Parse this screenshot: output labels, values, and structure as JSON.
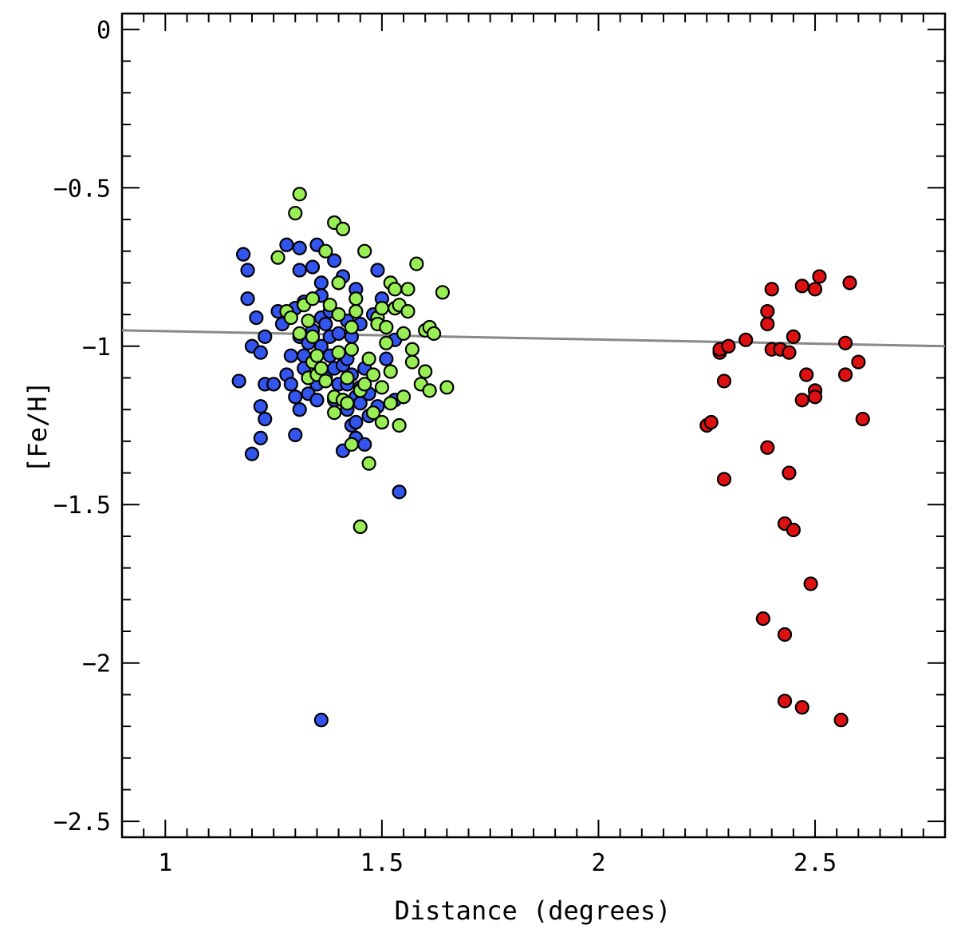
{
  "chart_data": {
    "type": "scatter",
    "title": "",
    "xlabel": "Distance (degrees)",
    "ylabel": "[Fe/H]",
    "xlim": [
      0.9,
      2.8
    ],
    "ylim": [
      -2.55,
      0.05
    ],
    "x_ticks": [
      1,
      1.5,
      2,
      2.5
    ],
    "x_tick_labels": [
      "1",
      "1.5",
      "2",
      "2.5"
    ],
    "y_ticks": [
      0,
      -0.5,
      -1,
      -1.5,
      -2,
      -2.5
    ],
    "y_tick_labels": [
      "0",
      "−0.5",
      "−1",
      "−1.5",
      "−2",
      "−2.5"
    ],
    "grid": false,
    "colors": {
      "blue": "#3355ee",
      "green": "#99ee55",
      "red": "#dd1111",
      "line": "#888888",
      "edge": "#000000"
    },
    "fit_line": {
      "x": [
        0.9,
        2.8
      ],
      "y": [
        -0.95,
        -1.0
      ]
    },
    "series": [
      {
        "name": "blue",
        "color": "#3355ee",
        "points": [
          [
            1.17,
            -1.11
          ],
          [
            1.18,
            -0.71
          ],
          [
            1.19,
            -0.76
          ],
          [
            1.19,
            -0.85
          ],
          [
            1.2,
            -1.34
          ],
          [
            1.2,
            -1.0
          ],
          [
            1.21,
            -0.91
          ],
          [
            1.22,
            -1.02
          ],
          [
            1.22,
            -1.29
          ],
          [
            1.22,
            -1.19
          ],
          [
            1.23,
            -1.12
          ],
          [
            1.23,
            -1.23
          ],
          [
            1.23,
            -0.97
          ],
          [
            1.25,
            -1.12
          ],
          [
            1.26,
            -0.89
          ],
          [
            1.27,
            -0.93
          ],
          [
            1.28,
            -1.09
          ],
          [
            1.28,
            -0.68
          ],
          [
            1.29,
            -1.03
          ],
          [
            1.29,
            -1.12
          ],
          [
            1.3,
            -1.16
          ],
          [
            1.3,
            -1.28
          ],
          [
            1.3,
            -0.88
          ],
          [
            1.31,
            -1.2
          ],
          [
            1.31,
            -0.69
          ],
          [
            1.31,
            -0.76
          ],
          [
            1.31,
            -0.97
          ],
          [
            1.32,
            -1.07
          ],
          [
            1.32,
            -1.03
          ],
          [
            1.32,
            -0.86
          ],
          [
            1.33,
            -1.1
          ],
          [
            1.33,
            -0.99
          ],
          [
            1.33,
            -1.15
          ],
          [
            1.34,
            -0.75
          ],
          [
            1.34,
            -0.95
          ],
          [
            1.34,
            -1.05
          ],
          [
            1.35,
            -1.12
          ],
          [
            1.35,
            -1.17
          ],
          [
            1.35,
            -0.68
          ],
          [
            1.36,
            -0.84
          ],
          [
            1.36,
            -0.8
          ],
          [
            1.36,
            -0.91
          ],
          [
            1.36,
            -1.0
          ],
          [
            1.37,
            -0.93
          ],
          [
            1.37,
            -1.1
          ],
          [
            1.38,
            -0.97
          ],
          [
            1.38,
            -1.03
          ],
          [
            1.38,
            -0.89
          ],
          [
            1.39,
            -0.73
          ],
          [
            1.39,
            -1.07
          ],
          [
            1.4,
            -0.96
          ],
          [
            1.4,
            -1.12
          ],
          [
            1.41,
            -0.78
          ],
          [
            1.41,
            -1.06
          ],
          [
            1.41,
            -1.33
          ],
          [
            1.42,
            -0.92
          ],
          [
            1.42,
            -1.04
          ],
          [
            1.42,
            -1.12
          ],
          [
            1.42,
            -1.2
          ],
          [
            1.43,
            -0.97
          ],
          [
            1.43,
            -1.25
          ],
          [
            1.43,
            -1.09
          ],
          [
            1.44,
            -0.82
          ],
          [
            1.44,
            -1.16
          ],
          [
            1.44,
            -1.29
          ],
          [
            1.44,
            -1.24
          ],
          [
            1.45,
            -1.13
          ],
          [
            1.45,
            -1.18
          ],
          [
            1.46,
            -1.31
          ],
          [
            1.46,
            -1.07
          ],
          [
            1.47,
            -1.15
          ],
          [
            1.48,
            -0.9
          ],
          [
            1.49,
            -1.19
          ],
          [
            1.49,
            -0.76
          ],
          [
            1.5,
            -0.85
          ],
          [
            1.51,
            -1.04
          ],
          [
            1.53,
            -0.98
          ],
          [
            1.53,
            -1.17
          ],
          [
            1.54,
            -1.46
          ],
          [
            1.36,
            -2.18
          ],
          [
            1.45,
            -0.93
          ],
          [
            1.39,
            -1.17
          ],
          [
            1.47,
            -1.22
          ]
        ]
      },
      {
        "name": "green",
        "color": "#99ee55",
        "points": [
          [
            1.26,
            -0.72
          ],
          [
            1.28,
            -0.89
          ],
          [
            1.29,
            -0.91
          ],
          [
            1.3,
            -0.58
          ],
          [
            1.31,
            -0.52
          ],
          [
            1.31,
            -0.96
          ],
          [
            1.32,
            -0.87
          ],
          [
            1.33,
            -1.1
          ],
          [
            1.33,
            -0.92
          ],
          [
            1.34,
            -0.97
          ],
          [
            1.34,
            -0.85
          ],
          [
            1.34,
            -1.05
          ],
          [
            1.35,
            -1.03
          ],
          [
            1.35,
            -1.09
          ],
          [
            1.36,
            -1.07
          ],
          [
            1.37,
            -0.7
          ],
          [
            1.37,
            -1.11
          ],
          [
            1.38,
            -0.87
          ],
          [
            1.39,
            -0.61
          ],
          [
            1.39,
            -1.16
          ],
          [
            1.39,
            -1.21
          ],
          [
            1.4,
            -0.9
          ],
          [
            1.4,
            -0.8
          ],
          [
            1.41,
            -0.63
          ],
          [
            1.41,
            -1.17
          ],
          [
            1.42,
            -1.1
          ],
          [
            1.42,
            -1.18
          ],
          [
            1.43,
            -1.01
          ],
          [
            1.43,
            -0.94
          ],
          [
            1.43,
            -1.31
          ],
          [
            1.44,
            -0.85
          ],
          [
            1.44,
            -0.89
          ],
          [
            1.45,
            -1.14
          ],
          [
            1.45,
            -1.57
          ],
          [
            1.46,
            -1.12
          ],
          [
            1.46,
            -0.7
          ],
          [
            1.47,
            -1.37
          ],
          [
            1.47,
            -1.04
          ],
          [
            1.48,
            -1.09
          ],
          [
            1.48,
            -1.21
          ],
          [
            1.49,
            -0.91
          ],
          [
            1.49,
            -0.93
          ],
          [
            1.5,
            -1.24
          ],
          [
            1.5,
            -0.88
          ],
          [
            1.51,
            -0.99
          ],
          [
            1.51,
            -0.94
          ],
          [
            1.52,
            -1.18
          ],
          [
            1.52,
            -1.08
          ],
          [
            1.52,
            -0.8
          ],
          [
            1.53,
            -0.88
          ],
          [
            1.53,
            -0.82
          ],
          [
            1.54,
            -1.25
          ],
          [
            1.54,
            -0.87
          ],
          [
            1.55,
            -1.16
          ],
          [
            1.55,
            -0.96
          ],
          [
            1.56,
            -0.89
          ],
          [
            1.56,
            -0.82
          ],
          [
            1.57,
            -1.01
          ],
          [
            1.57,
            -1.05
          ],
          [
            1.58,
            -0.74
          ],
          [
            1.59,
            -1.12
          ],
          [
            1.6,
            -1.08
          ],
          [
            1.6,
            -0.95
          ],
          [
            1.61,
            -1.14
          ],
          [
            1.61,
            -0.94
          ],
          [
            1.62,
            -0.96
          ],
          [
            1.64,
            -0.83
          ],
          [
            1.65,
            -1.13
          ],
          [
            1.5,
            -1.13
          ],
          [
            1.4,
            -1.02
          ]
        ]
      },
      {
        "name": "red",
        "color": "#dd1111",
        "points": [
          [
            2.25,
            -1.25
          ],
          [
            2.26,
            -1.24
          ],
          [
            2.28,
            -1.02
          ],
          [
            2.28,
            -1.01
          ],
          [
            2.29,
            -1.11
          ],
          [
            2.29,
            -1.42
          ],
          [
            2.3,
            -1.0
          ],
          [
            2.34,
            -0.98
          ],
          [
            2.38,
            -1.86
          ],
          [
            2.39,
            -0.93
          ],
          [
            2.39,
            -0.89
          ],
          [
            2.39,
            -1.32
          ],
          [
            2.4,
            -1.01
          ],
          [
            2.4,
            -0.82
          ],
          [
            2.42,
            -1.01
          ],
          [
            2.43,
            -1.91
          ],
          [
            2.43,
            -1.56
          ],
          [
            2.43,
            -2.12
          ],
          [
            2.44,
            -1.4
          ],
          [
            2.44,
            -1.02
          ],
          [
            2.45,
            -1.58
          ],
          [
            2.45,
            -0.97
          ],
          [
            2.47,
            -0.81
          ],
          [
            2.47,
            -2.14
          ],
          [
            2.47,
            -1.17
          ],
          [
            2.48,
            -1.09
          ],
          [
            2.49,
            -1.75
          ],
          [
            2.5,
            -1.14
          ],
          [
            2.5,
            -1.16
          ],
          [
            2.5,
            -0.82
          ],
          [
            2.51,
            -0.78
          ],
          [
            2.56,
            -2.18
          ],
          [
            2.57,
            -0.99
          ],
          [
            2.57,
            -1.09
          ],
          [
            2.58,
            -0.8
          ],
          [
            2.6,
            -1.05
          ],
          [
            2.61,
            -1.23
          ]
        ]
      }
    ]
  }
}
